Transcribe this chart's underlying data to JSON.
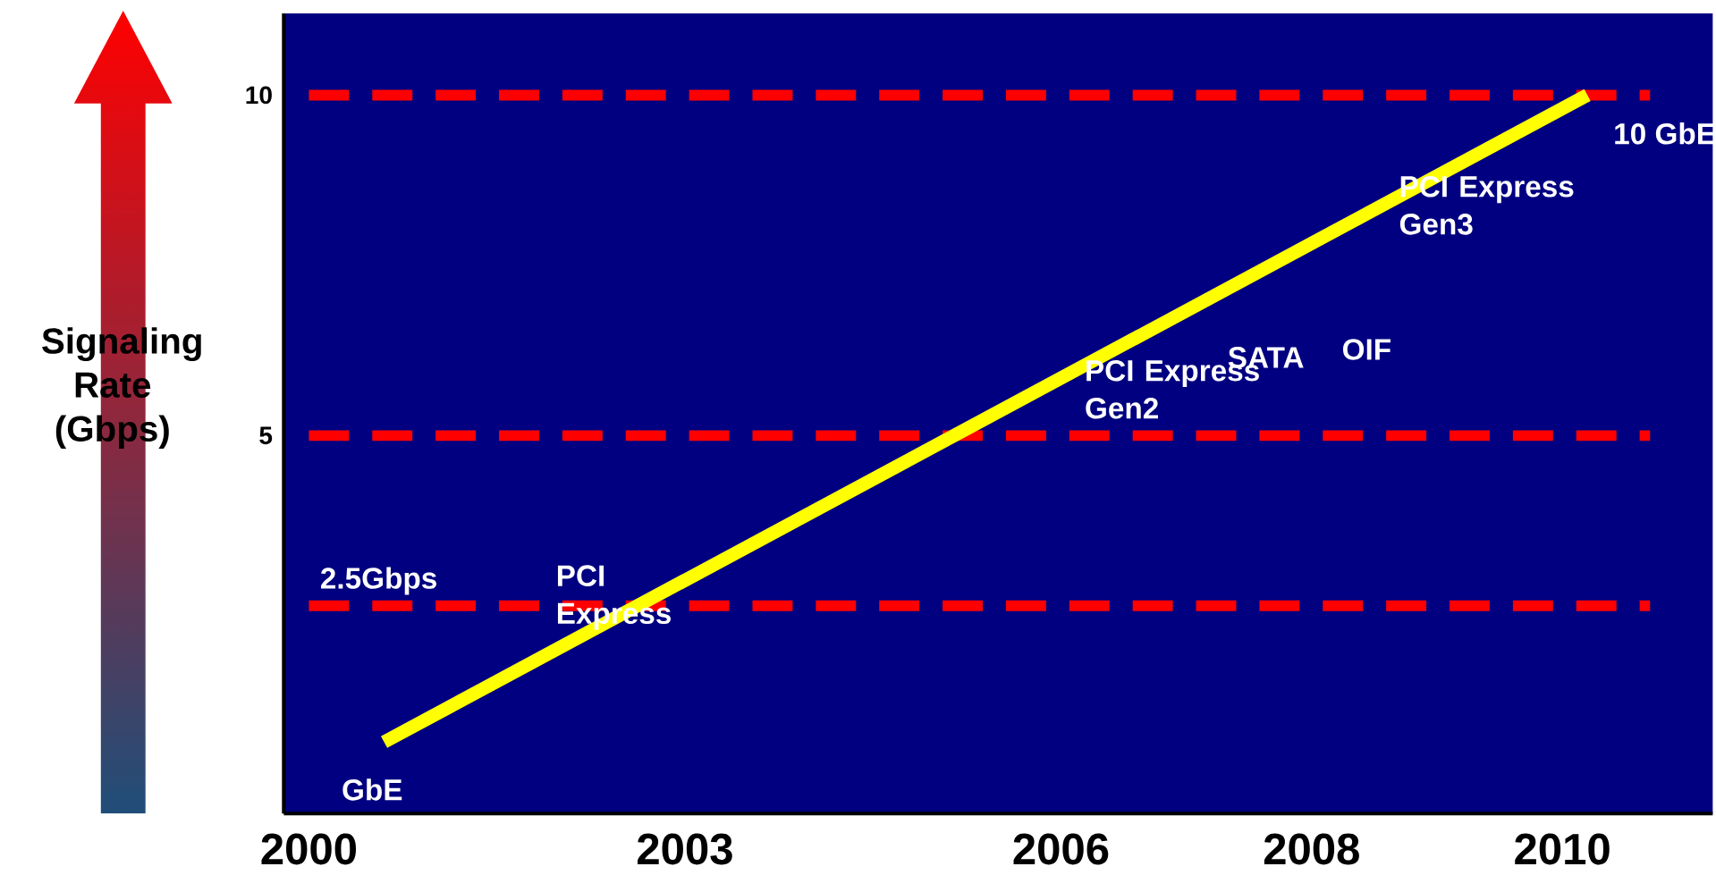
{
  "chart_data": {
    "type": "line",
    "ylabel": "Signaling Rate (Gbps)",
    "x": [
      2000.6,
      2010.2
    ],
    "series": [
      {
        "color": "#ffff00",
        "values": [
          0.5,
          10
        ]
      }
    ],
    "xlim": [
      1999.8,
      2011.2
    ],
    "ylim": [
      -0.55,
      11.2
    ],
    "xticks": [
      2000,
      2003,
      2006,
      2008,
      2010
    ],
    "yticks": [
      5,
      10
    ],
    "ref_lines": [
      {
        "axis": "y",
        "value": 10,
        "color": "#ff0000",
        "line_style": "dashed"
      },
      {
        "axis": "y",
        "value": 5,
        "color": "#ff0000",
        "line_style": "dashed"
      },
      {
        "axis": "y",
        "value": 2.5,
        "color": "#ff0000",
        "line_style": "dashed",
        "label": "2.5Gbps"
      }
    ],
    "annotations": [
      "GbE",
      "PCI Express",
      "PCI Express Gen2",
      "SATA",
      "OIF",
      "PCI Express Gen3",
      "10 GbE"
    ],
    "grid": false,
    "line_style": "solid",
    "marker": "none"
  }
}
